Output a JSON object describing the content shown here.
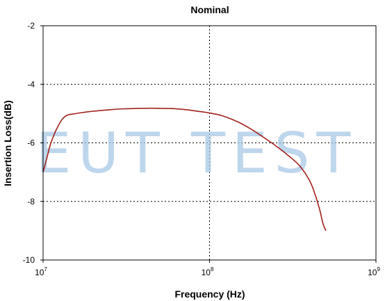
{
  "chart_data": {
    "type": "line",
    "title": "Nominal",
    "xlabel": "Frequency (Hz)",
    "ylabel": "Insertion Loss(dB)",
    "x_scale": "log",
    "xlim": [
      10000000,
      1000000000
    ],
    "ylim": [
      -10,
      -2
    ],
    "x_ticks": [
      {
        "value": 10000000,
        "base": "10",
        "exp": "7"
      },
      {
        "value": 100000000,
        "base": "10",
        "exp": "8"
      },
      {
        "value": 1000000000,
        "base": "10",
        "exp": "9"
      }
    ],
    "y_ticks": [
      {
        "value": -2,
        "label": "-2"
      },
      {
        "value": -4,
        "label": "-4"
      },
      {
        "value": -6,
        "label": "-6"
      },
      {
        "value": -8,
        "label": "-8"
      },
      {
        "value": -10,
        "label": "-10"
      }
    ],
    "grid": {
      "style": "dotted",
      "color": "#000000"
    },
    "series": [
      {
        "color": "#a0201a",
        "x": [
          10000000,
          10500000,
          11000000,
          11500000,
          12000000,
          13000000,
          14000000,
          15000000,
          17000000,
          20000000,
          25000000,
          30000000,
          40000000,
          50000000,
          60000000,
          70000000,
          80000000,
          90000000,
          100000000,
          120000000,
          150000000,
          180000000,
          200000000,
          250000000,
          300000000,
          350000000,
          400000000,
          430000000,
          460000000,
          480000000,
          500000000
        ],
        "y": [
          -7.0,
          -6.55,
          -6.1,
          -5.8,
          -5.55,
          -5.2,
          -5.05,
          -5.02,
          -4.97,
          -4.92,
          -4.87,
          -4.84,
          -4.82,
          -4.82,
          -4.83,
          -4.86,
          -4.9,
          -4.94,
          -4.98,
          -5.08,
          -5.3,
          -5.55,
          -5.72,
          -6.1,
          -6.45,
          -6.8,
          -7.3,
          -7.75,
          -8.3,
          -8.75,
          -9.0
        ]
      }
    ]
  },
  "watermark": "EUT TEST"
}
